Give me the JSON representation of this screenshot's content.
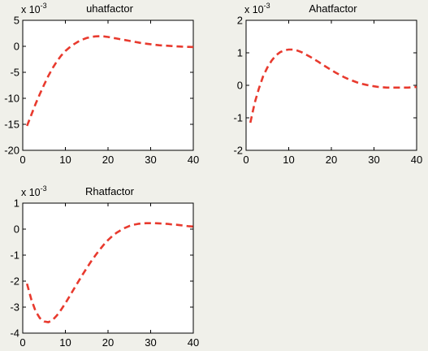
{
  "figure": {
    "background_color": "#f0f0ea",
    "axes_color": "#ffffff",
    "series_color": "#e83a2e",
    "line_style": "dashed"
  },
  "chart_data": [
    {
      "type": "line",
      "title": "uhatfactor",
      "exponent_base": "x 10",
      "exponent_power": "-3",
      "xlim": [
        0,
        40
      ],
      "ylim": [
        -20,
        5
      ],
      "xticks": [
        0,
        10,
        20,
        30,
        40
      ],
      "yticks": [
        -20,
        -15,
        -10,
        -5,
        0,
        5
      ],
      "x": [
        1,
        2,
        3,
        4,
        5,
        6,
        7,
        8,
        9,
        10,
        11,
        12,
        13,
        14,
        15,
        16,
        17,
        18,
        19,
        20,
        21,
        22,
        23,
        24,
        25,
        26,
        27,
        28,
        29,
        30,
        31,
        32,
        33,
        34,
        35,
        36,
        37,
        38,
        39,
        40
      ],
      "values": [
        -15.3,
        -13.2,
        -11.1,
        -9.2,
        -7.4,
        -5.7,
        -4.2,
        -2.9,
        -1.8,
        -0.9,
        -0.2,
        0.4,
        0.9,
        1.3,
        1.6,
        1.8,
        1.9,
        1.95,
        1.9,
        1.8,
        1.65,
        1.5,
        1.35,
        1.2,
        1.05,
        0.9,
        0.75,
        0.6,
        0.5,
        0.4,
        0.3,
        0.2,
        0.15,
        0.1,
        0.05,
        0.0,
        -0.05,
        -0.1,
        -0.1,
        -0.15
      ]
    },
    {
      "type": "line",
      "title": "Ahatfactor",
      "exponent_base": "x 10",
      "exponent_power": "-3",
      "xlim": [
        0,
        40
      ],
      "ylim": [
        -2,
        2
      ],
      "xticks": [
        0,
        10,
        20,
        30,
        40
      ],
      "yticks": [
        -2,
        -1,
        0,
        1,
        2
      ],
      "x": [
        1,
        2,
        3,
        4,
        5,
        6,
        7,
        8,
        9,
        10,
        11,
        12,
        13,
        14,
        15,
        16,
        17,
        18,
        19,
        20,
        21,
        22,
        23,
        24,
        25,
        26,
        27,
        28,
        29,
        30,
        31,
        32,
        33,
        34,
        35,
        36,
        37,
        38,
        39,
        40
      ],
      "values": [
        -1.15,
        -0.55,
        -0.1,
        0.28,
        0.55,
        0.76,
        0.92,
        1.02,
        1.08,
        1.1,
        1.1,
        1.07,
        1.02,
        0.95,
        0.88,
        0.8,
        0.72,
        0.63,
        0.55,
        0.47,
        0.39,
        0.32,
        0.25,
        0.19,
        0.14,
        0.09,
        0.05,
        0.02,
        -0.01,
        -0.03,
        -0.05,
        -0.06,
        -0.07,
        -0.07,
        -0.07,
        -0.07,
        -0.07,
        -0.07,
        -0.06,
        -0.05
      ]
    },
    {
      "type": "line",
      "title": "Rhatfactor",
      "exponent_base": "x 10",
      "exponent_power": "-3",
      "xlim": [
        0,
        40
      ],
      "ylim": [
        -4,
        1
      ],
      "xticks": [
        0,
        10,
        20,
        30,
        40
      ],
      "yticks": [
        -4,
        -3,
        -2,
        -1,
        0,
        1
      ],
      "x": [
        1,
        2,
        3,
        4,
        5,
        6,
        7,
        8,
        9,
        10,
        11,
        12,
        13,
        14,
        15,
        16,
        17,
        18,
        19,
        20,
        21,
        22,
        23,
        24,
        25,
        26,
        27,
        28,
        29,
        30,
        31,
        32,
        33,
        34,
        35,
        36,
        37,
        38,
        39,
        40
      ],
      "values": [
        -2.1,
        -2.7,
        -3.15,
        -3.42,
        -3.55,
        -3.58,
        -3.5,
        -3.32,
        -3.1,
        -2.85,
        -2.58,
        -2.3,
        -2.03,
        -1.76,
        -1.5,
        -1.25,
        -1.02,
        -0.8,
        -0.6,
        -0.42,
        -0.27,
        -0.14,
        -0.04,
        0.05,
        0.12,
        0.17,
        0.2,
        0.22,
        0.23,
        0.23,
        0.23,
        0.22,
        0.21,
        0.2,
        0.18,
        0.17,
        0.15,
        0.13,
        0.11,
        0.1
      ]
    }
  ]
}
